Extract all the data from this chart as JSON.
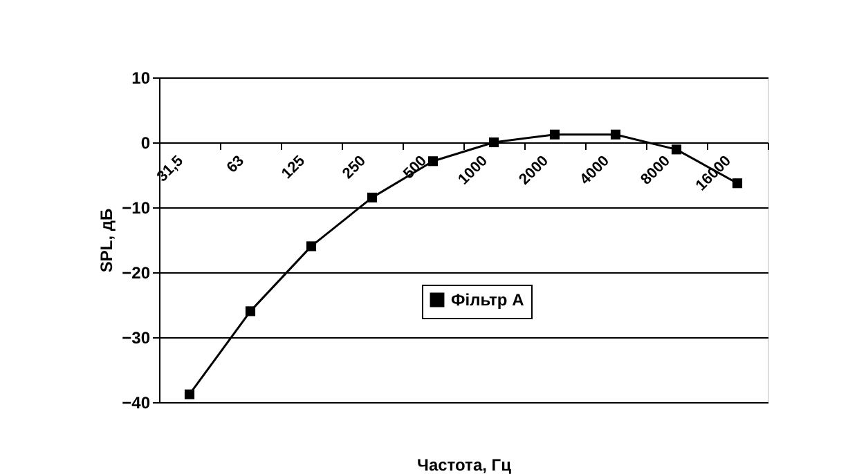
{
  "chart_data": {
    "type": "line",
    "xlabel": "Частота, Гц",
    "ylabel": "SPL, дБ",
    "categories": [
      "31,5",
      "63",
      "125",
      "250",
      "500",
      "1000",
      "2000",
      "4000",
      "8000",
      "16000"
    ],
    "series": [
      {
        "name": "Фільтр А",
        "color": "#000000",
        "values": [
          -38.8,
          -26.0,
          -16.0,
          -8.5,
          -2.9,
          0,
          1.2,
          1.2,
          -1.1,
          -6.3
        ]
      }
    ],
    "ylim": [
      -40,
      10
    ],
    "yticks": [
      -40,
      -30,
      -20,
      -10,
      0,
      10
    ],
    "grid": "y",
    "legend": "center",
    "marker": "square",
    "line_style": "solid"
  }
}
